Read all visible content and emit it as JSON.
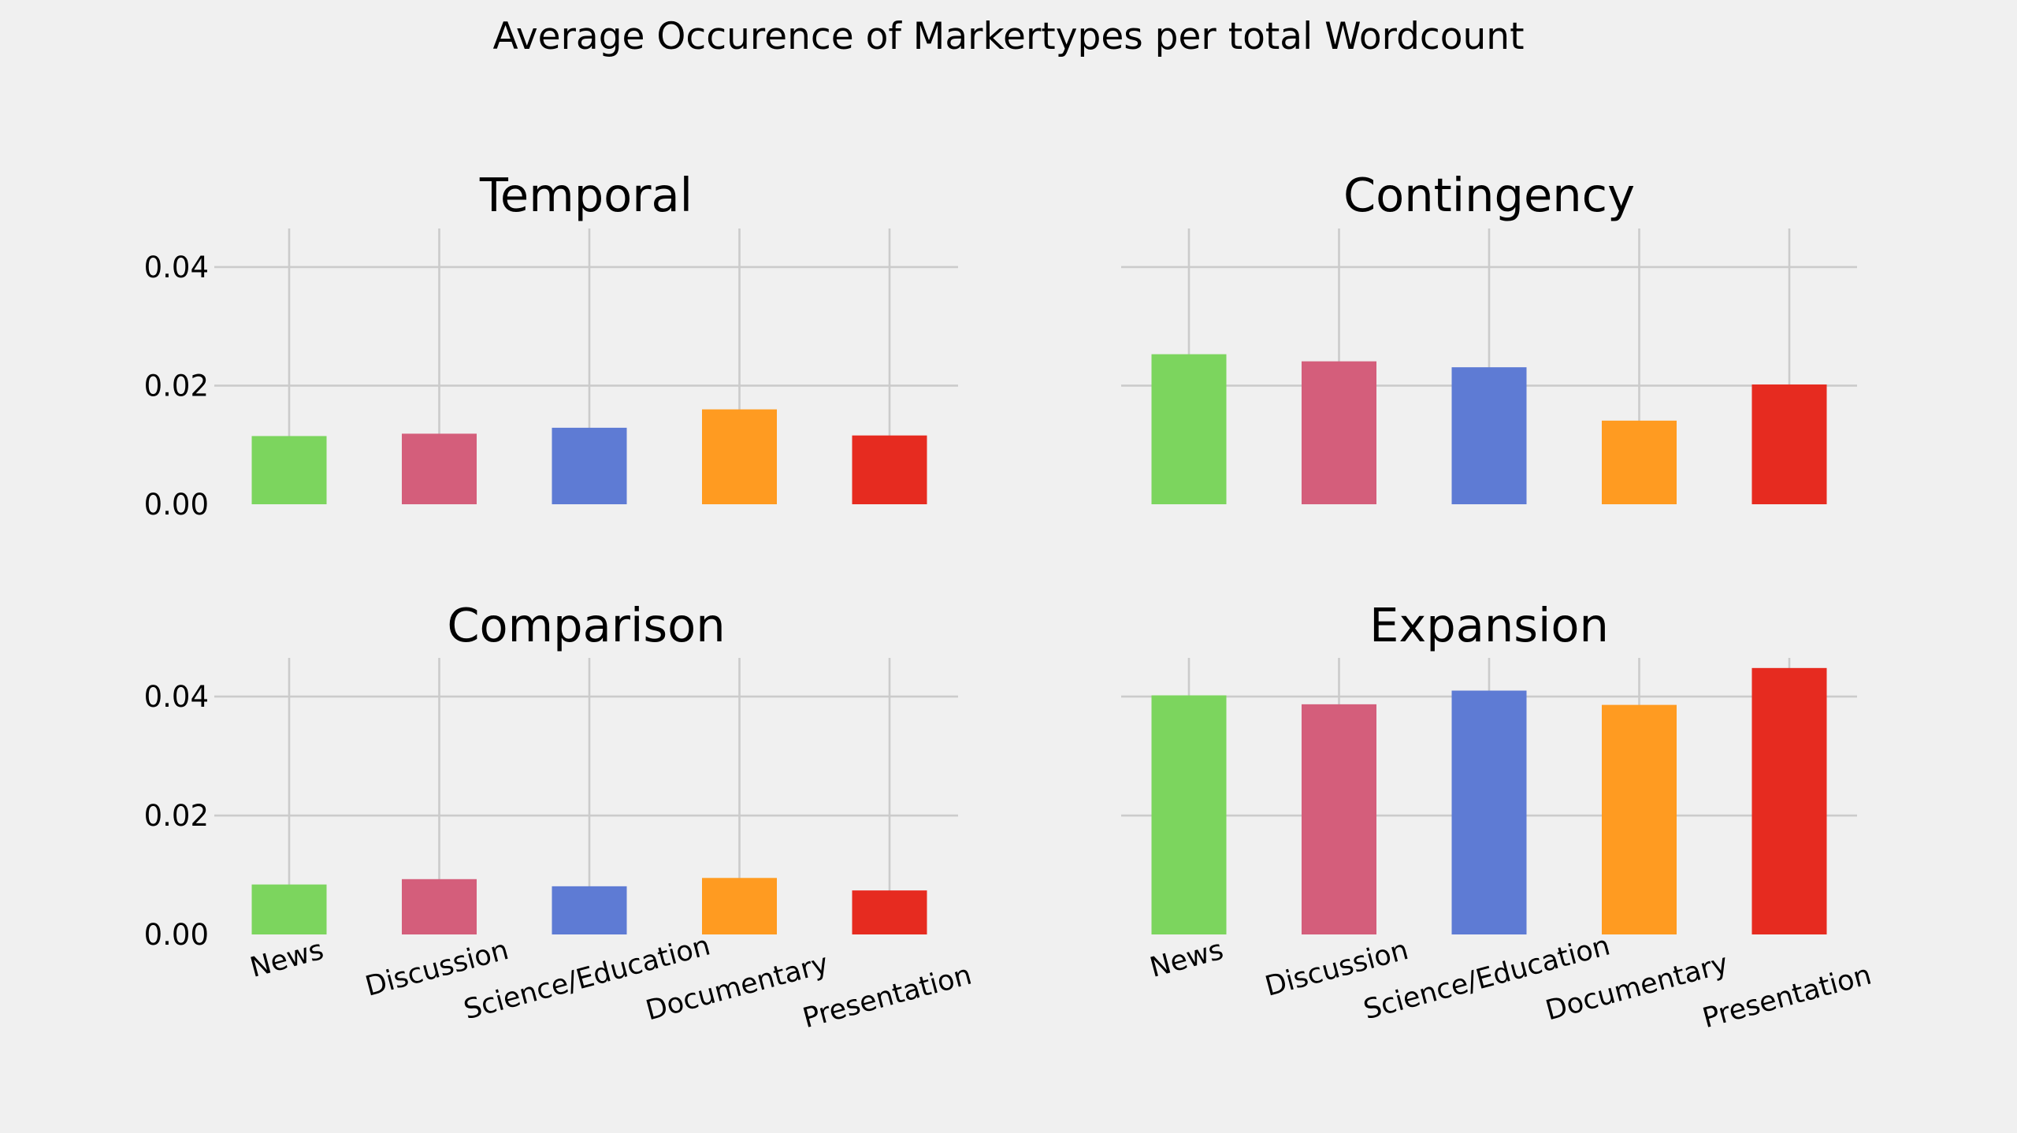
{
  "chart_data": {
    "type": "bar",
    "title": "Average Occurence of Markertypes per total Wordcount",
    "categories": [
      "News",
      "Discussion",
      "Science/Education",
      "Documentary",
      "Presentation"
    ],
    "colors": [
      "#7cd55e",
      "#d45e7b",
      "#5e7bd4",
      "#ff9b21",
      "#e62b20"
    ],
    "ylim": [
      0,
      0.0465
    ],
    "yticks": [
      "0.00",
      "0.02",
      "0.04"
    ],
    "grid": true,
    "legend": "none",
    "subplots": [
      {
        "title": "Temporal",
        "values": [
          0.0115,
          0.0119,
          0.0129,
          0.016,
          0.0116
        ]
      },
      {
        "title": "Contingency",
        "values": [
          0.0253,
          0.0241,
          0.0231,
          0.0141,
          0.0202
        ]
      },
      {
        "title": "Comparison",
        "values": [
          0.0084,
          0.0093,
          0.0081,
          0.0095,
          0.0074
        ]
      },
      {
        "title": "Expansion",
        "values": [
          0.0402,
          0.0387,
          0.041,
          0.0386,
          0.0448
        ]
      }
    ]
  }
}
